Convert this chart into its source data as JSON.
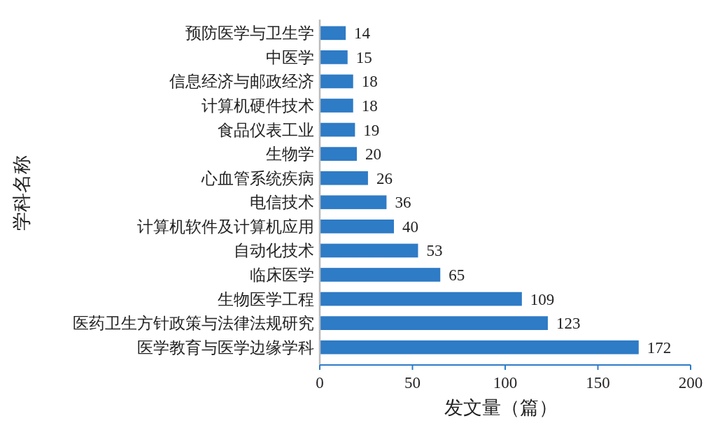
{
  "chart_data": {
    "type": "bar",
    "orientation": "horizontal",
    "categories": [
      "预防医学与卫生学",
      "中医学",
      "信息经济与邮政经济",
      "计算机硬件技术",
      "食品仪表工业",
      "生物学",
      "心血管系统疾病",
      "电信技术",
      "计算机软件及计算机应用",
      "自动化技术",
      "临床医学",
      "生物医学工程",
      "医药卫生方针政策与法律法规研究",
      "医学教育与医学边缘学科"
    ],
    "values": [
      14,
      15,
      18,
      18,
      19,
      20,
      26,
      36,
      40,
      53,
      65,
      109,
      123,
      172
    ],
    "color": "#2e7bc6",
    "xlim": [
      0,
      200
    ],
    "xticks": [
      0,
      50,
      100,
      150,
      200
    ],
    "xlabel": "发文量（篇）",
    "ylabel": "学科名称",
    "data_labels": true
  }
}
